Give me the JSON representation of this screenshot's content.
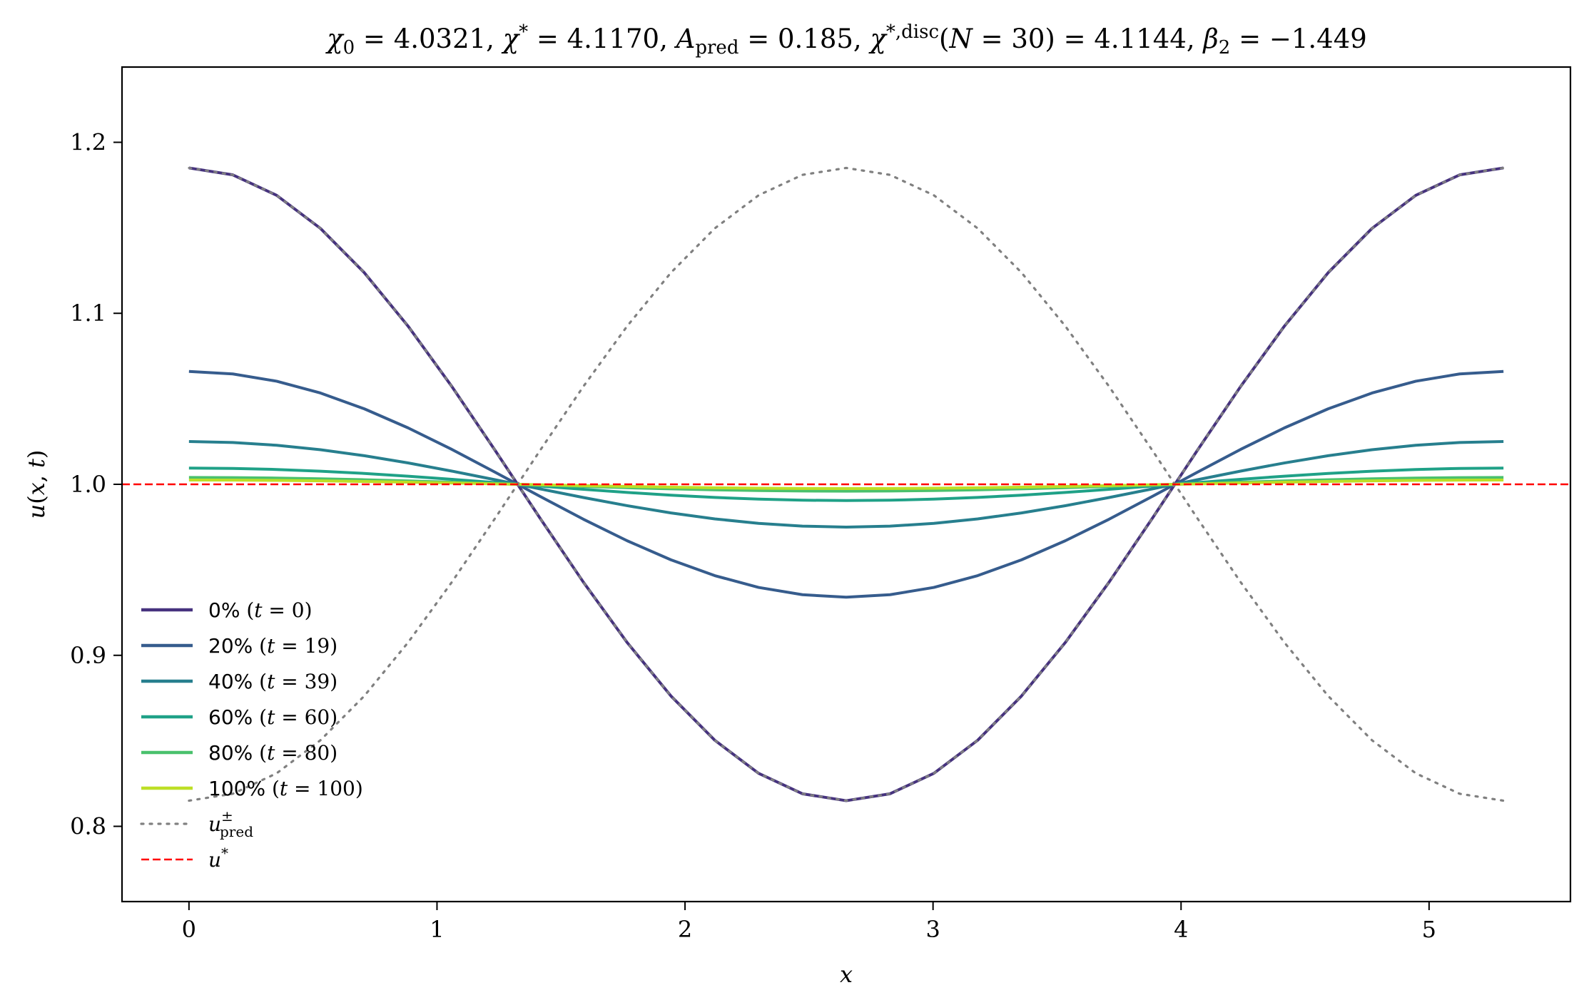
{
  "chart_data": {
    "type": "line",
    "title": "χ₀ = 4.0321,  χ* = 4.1170,  A_pred = 0.185,  χ*,disc(N = 30) = 4.1144,  β₂ = −1.449",
    "xlabel": "x",
    "ylabel": "u(x, t)",
    "xlim": [
      -0.27,
      5.57
    ],
    "ylim": [
      0.756,
      1.244
    ],
    "xticks": [
      0,
      1,
      2,
      3,
      4,
      5
    ],
    "yticks": [
      0.8,
      0.9,
      1.0,
      1.1,
      1.2
    ],
    "grid": false,
    "legend_position": "lower-left",
    "x_range": [
      0,
      5.3
    ],
    "n_points": 31,
    "series": [
      {
        "name": "0% (t = 0)",
        "amplitude": 0.185,
        "color": "#46327e",
        "style": "solid"
      },
      {
        "name": "20% (t = 19)",
        "amplitude": 0.066,
        "color": "#365c8d",
        "style": "solid"
      },
      {
        "name": "40% (t = 39)",
        "amplitude": 0.025,
        "color": "#277f8e",
        "style": "solid"
      },
      {
        "name": "60% (t = 60)",
        "amplitude": 0.0095,
        "color": "#1fa187",
        "style": "solid"
      },
      {
        "name": "80% (t = 80)",
        "amplitude": 0.004,
        "color": "#4ac16d",
        "style": "solid"
      },
      {
        "name": "100% (t = 100)",
        "amplitude": 0.0025,
        "color": "#bddf26",
        "style": "solid"
      },
      {
        "name": "u±pred",
        "amplitude": -0.185,
        "color": "#808080",
        "style": "dotted"
      }
    ],
    "reference_line": {
      "name": "u*",
      "y": 1.0,
      "color": "#ff0000",
      "style": "dashed"
    },
    "curve_model": "u = 1 + amplitude · cos(2πx / 5.3)"
  }
}
